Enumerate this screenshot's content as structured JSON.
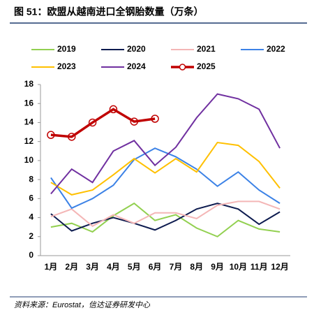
{
  "chart_data": {
    "type": "line",
    "title": "图 51：欧盟从越南进口全钢胎数量（万条）",
    "source": "资料来源：Eurostat，信达证券研发中心",
    "categories": [
      "1月",
      "2月",
      "3月",
      "4月",
      "5月",
      "6月",
      "7月",
      "8月",
      "9月",
      "10月",
      "11月",
      "12月"
    ],
    "series": [
      {
        "name": "2019",
        "color": "#92d050",
        "values": [
          3.0,
          3.4,
          2.5,
          4.2,
          5.5,
          3.7,
          4.3,
          2.9,
          2.0,
          3.7,
          2.8,
          2.5
        ]
      },
      {
        "name": "2020",
        "color": "#0d1b4f",
        "values": [
          4.4,
          2.6,
          3.4,
          4.0,
          3.4,
          2.7,
          3.7,
          4.9,
          5.5,
          4.9,
          3.3,
          4.6
        ]
      },
      {
        "name": "2021",
        "color": "#f4b6b6",
        "values": [
          4.1,
          4.9,
          3.1,
          4.3,
          3.4,
          4.5,
          4.5,
          3.9,
          5.3,
          5.7,
          5.7,
          4.9
        ]
      },
      {
        "name": "2022",
        "color": "#3c82e6",
        "values": [
          8.2,
          5.0,
          6.0,
          7.4,
          10.1,
          11.3,
          10.4,
          9.1,
          7.3,
          8.8,
          6.9,
          5.5
        ]
      },
      {
        "name": "2023",
        "color": "#ffc000",
        "values": [
          7.7,
          6.4,
          6.9,
          8.5,
          10.2,
          8.7,
          10.2,
          8.8,
          11.9,
          11.6,
          9.9,
          7.1
        ]
      },
      {
        "name": "2024",
        "color": "#7030a0",
        "values": [
          6.5,
          9.1,
          7.7,
          11.0,
          12.1,
          9.5,
          11.4,
          14.5,
          17.0,
          16.5,
          15.4,
          11.3
        ]
      },
      {
        "name": "2025",
        "color": "#c00000",
        "marker": true,
        "values": [
          12.7,
          12.5,
          14.0,
          15.4,
          14.1,
          14.4,
          null,
          null,
          null,
          null,
          null,
          null
        ]
      }
    ],
    "ylim": [
      0,
      18
    ],
    "yticks": [
      0,
      2,
      4,
      6,
      8,
      10,
      12,
      14,
      16,
      18
    ],
    "grid": false
  }
}
